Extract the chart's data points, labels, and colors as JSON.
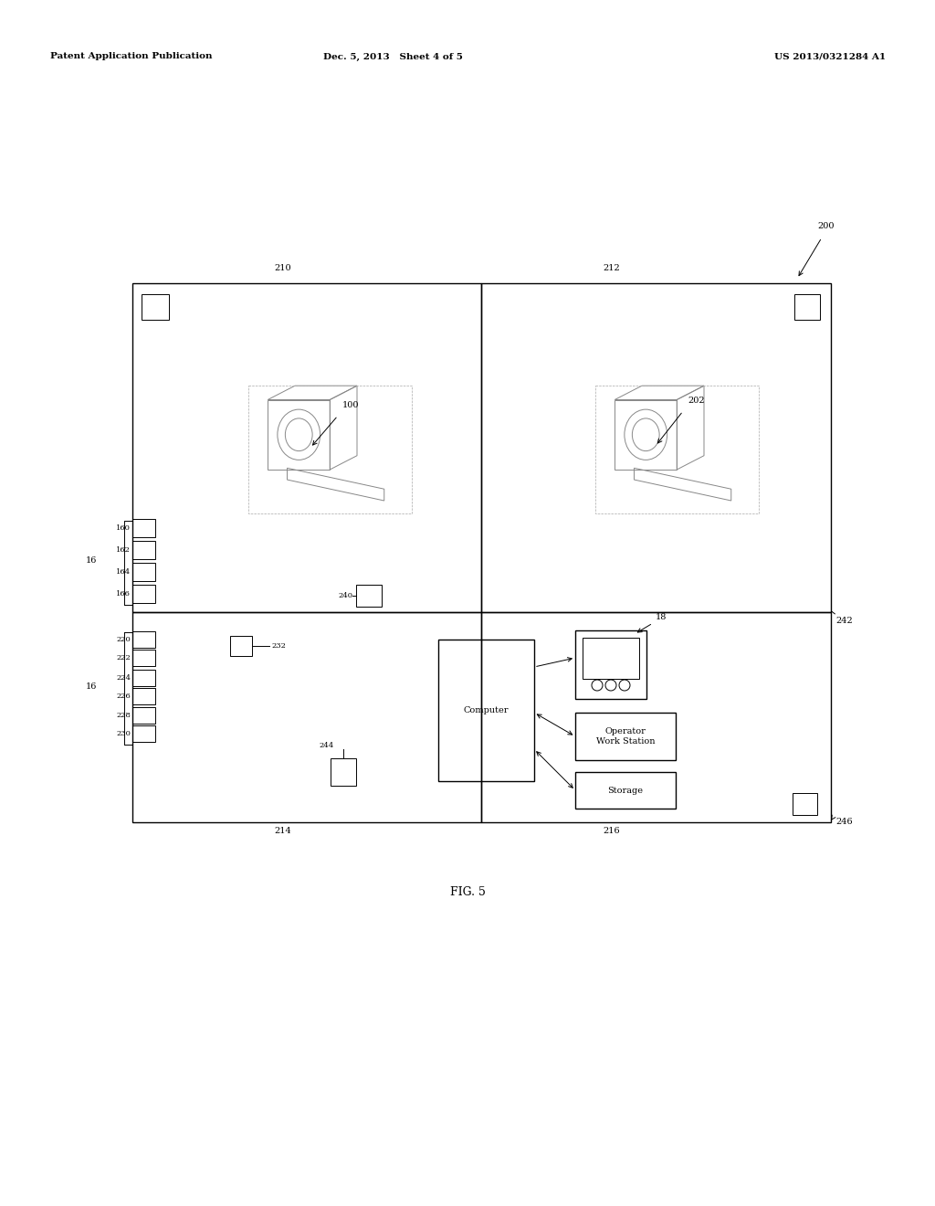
{
  "bg_color": "#ffffff",
  "header_left": "Patent Application Publication",
  "header_center": "Dec. 5, 2013   Sheet 4 of 5",
  "header_right": "US 2013/0321284 A1",
  "fig_label": "FIG. 5",
  "lw_main": 1.0,
  "lw_thin": 0.7,
  "fs_header": 7.5,
  "fs_ref": 7.0,
  "fs_small": 6.0,
  "gray_scanner": "#aaaaaa",
  "gray_dashed": "#999999"
}
